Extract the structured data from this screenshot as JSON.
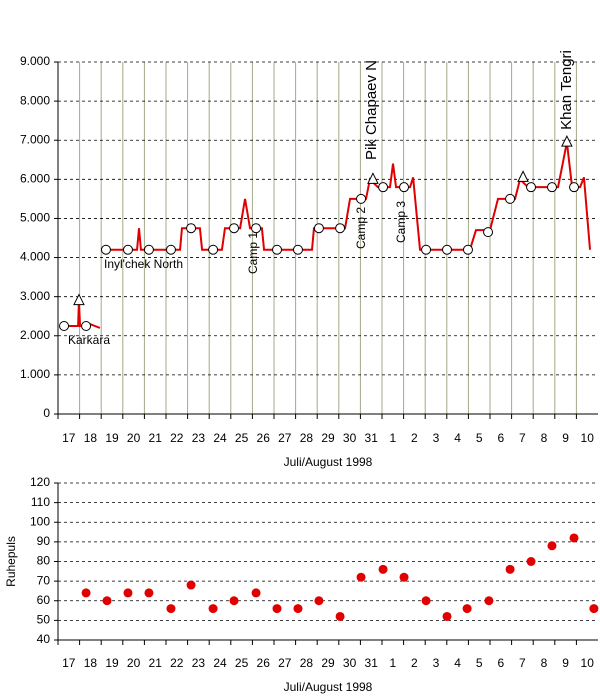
{
  "chart_data": [
    {
      "type": "line",
      "categories": [
        "17",
        "18",
        "19",
        "20",
        "21",
        "22",
        "23",
        "24",
        "25",
        "26",
        "27",
        "28",
        "29",
        "30",
        "31",
        "1",
        "2",
        "3",
        "4",
        "5",
        "6",
        "7",
        "8",
        "9",
        "10"
      ],
      "x_label": "Juli/August 1998",
      "xlim": [
        0,
        25
      ],
      "ylim": [
        0,
        9000
      ],
      "yticks": [
        0,
        {
          "value": 1000,
          "label": "1.000"
        },
        {
          "value": 2000,
          "label": "2.000"
        },
        {
          "value": 3000,
          "label": "3.000"
        },
        {
          "value": 4000,
          "label": "4.000"
        },
        {
          "value": 5000,
          "label": "5.000"
        },
        {
          "value": 6000,
          "label": "6.000"
        },
        {
          "value": 7000,
          "label": "7.000"
        },
        {
          "value": 8000,
          "label": "8.000"
        },
        {
          "value": 9000,
          "label": "9.000"
        }
      ],
      "grid": true,
      "vertical_grid": true,
      "series": [
        {
          "marker": "none",
          "color": "#e00000",
          "x": [
            0.09,
            0.93,
            0.97,
            1.02,
            1.48,
            1.71,
            1.94,
            null,
            2.13,
            3.66,
            3.75,
            3.84,
            5.65,
            5.74,
            6.57,
            6.67,
            7.59,
            7.73,
            8.43,
            8.66,
            8.89,
            9.44,
            9.54,
            11.76,
            11.85,
            13.29,
            13.52,
            14.26,
            14.44,
            14.81,
            15.37,
            15.51,
            15.65,
            16.3,
            16.44,
            16.76,
            19.07,
            19.35,
            20.0,
            20.37,
            21.16,
            21.39,
            21.76,
            23.15,
            23.33,
            23.56,
            23.8,
            24.17,
            24.35,
            24.63
          ],
          "values": [
            2250,
            2250,
            2900,
            2250,
            2300,
            2250,
            2200,
            null,
            4200,
            4200,
            4750,
            4200,
            4200,
            4750,
            4750,
            4200,
            4200,
            4750,
            4750,
            5500,
            4750,
            4750,
            4200,
            4200,
            4750,
            4750,
            5500,
            5500,
            6000,
            5800,
            5800,
            6400,
            5800,
            5800,
            6050,
            4200,
            4200,
            4700,
            4700,
            5500,
            5500,
            6000,
            5800,
            5800,
            6300,
            6950,
            5800,
            5800,
            6050,
            4200
          ]
        },
        {
          "marker": "circle",
          "color": "#000000",
          "x": [
            0.28,
            1.3,
            2.22,
            3.24,
            4.21,
            5.23,
            6.16,
            7.18,
            8.15,
            9.17,
            10.14,
            11.11,
            12.08,
            13.06,
            14.03,
            15.05,
            16.02,
            17.04,
            18.01,
            18.98,
            19.91,
            20.93,
            21.9,
            22.87,
            23.89
          ],
          "values": [
            2250,
            2250,
            4200,
            4200,
            4200,
            4200,
            4750,
            4200,
            4750,
            4750,
            4200,
            4200,
            4750,
            4750,
            5500,
            5800,
            5800,
            4200,
            4200,
            4200,
            4650,
            5500,
            5800,
            5800,
            5800
          ]
        },
        {
          "marker": "triangle",
          "color": "#000000",
          "x": [
            0.97,
            14.58,
            21.53,
            23.56
          ],
          "values": [
            2900,
            6000,
            6050,
            6950
          ]
        }
      ],
      "annotations": [
        "Karkara",
        "Inyl'chek North",
        "Camp 1",
        "Camp 2",
        "Pik Chapaev N",
        "Camp 3",
        "Khan Tengri"
      ]
    },
    {
      "type": "scatter",
      "categories": [
        "17",
        "18",
        "19",
        "20",
        "21",
        "22",
        "23",
        "24",
        "25",
        "26",
        "27",
        "28",
        "29",
        "30",
        "31",
        "1",
        "2",
        "3",
        "4",
        "5",
        "6",
        "7",
        "8",
        "9",
        "10"
      ],
      "x_label": "Juli/August 1998",
      "y_label": "Ruhepuls",
      "xlim": [
        0,
        25
      ],
      "ylim": [
        40,
        120
      ],
      "yticks": [
        40,
        50,
        60,
        70,
        80,
        90,
        100,
        110,
        120
      ],
      "grid": true,
      "vertical_grid": false,
      "series": [
        {
          "marker": "dot",
          "color": "#e00000",
          "x": [
            1.3,
            2.27,
            3.24,
            4.21,
            5.23,
            6.16,
            7.18,
            8.15,
            9.17,
            10.14,
            11.11,
            12.08,
            13.06,
            14.03,
            15.05,
            16.02,
            17.04,
            18.01,
            18.94,
            19.95,
            20.93,
            21.9,
            22.87,
            23.89,
            24.81
          ],
          "values": [
            64,
            60,
            64,
            64,
            56,
            68,
            56,
            60,
            64,
            56,
            56,
            60,
            52,
            72,
            76,
            72,
            60,
            52,
            56,
            60,
            76,
            80,
            88,
            92,
            56
          ]
        }
      ]
    }
  ]
}
